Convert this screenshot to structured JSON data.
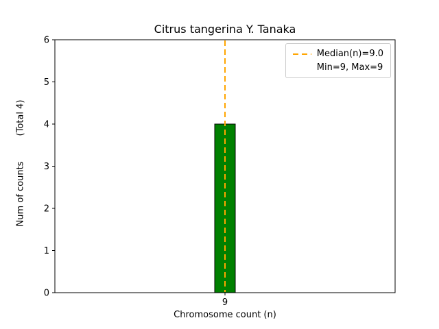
{
  "figure": {
    "title": "Citrus tangerina Y. Tanaka",
    "xlabel": "Chromosome count (n)",
    "ylabel": "Num of counts",
    "ylabel_secondary": "(Total 4)"
  },
  "legend": {
    "position": "upper right",
    "entries": [
      "Median(n)=9.0",
      "Min=9, Max=9"
    ]
  },
  "chart_data": {
    "type": "bar",
    "title": "Citrus tangerina Y. Tanaka",
    "xlabel": "Chromosome count (n)",
    "ylabel": "Num of counts    (Total 4)",
    "categories": [
      "9"
    ],
    "values": [
      4
    ],
    "total_counts": 4,
    "ylim": [
      0,
      6
    ],
    "yticks": [
      0,
      1,
      2,
      3,
      4,
      5,
      6
    ],
    "median_n": 9.0,
    "min_n": 9,
    "max_n": 9,
    "grid": false,
    "bar_color": "#008000",
    "bar_edge_color": "#000000",
    "median_line_color": "#FFA500",
    "legend_position": "upper right"
  }
}
